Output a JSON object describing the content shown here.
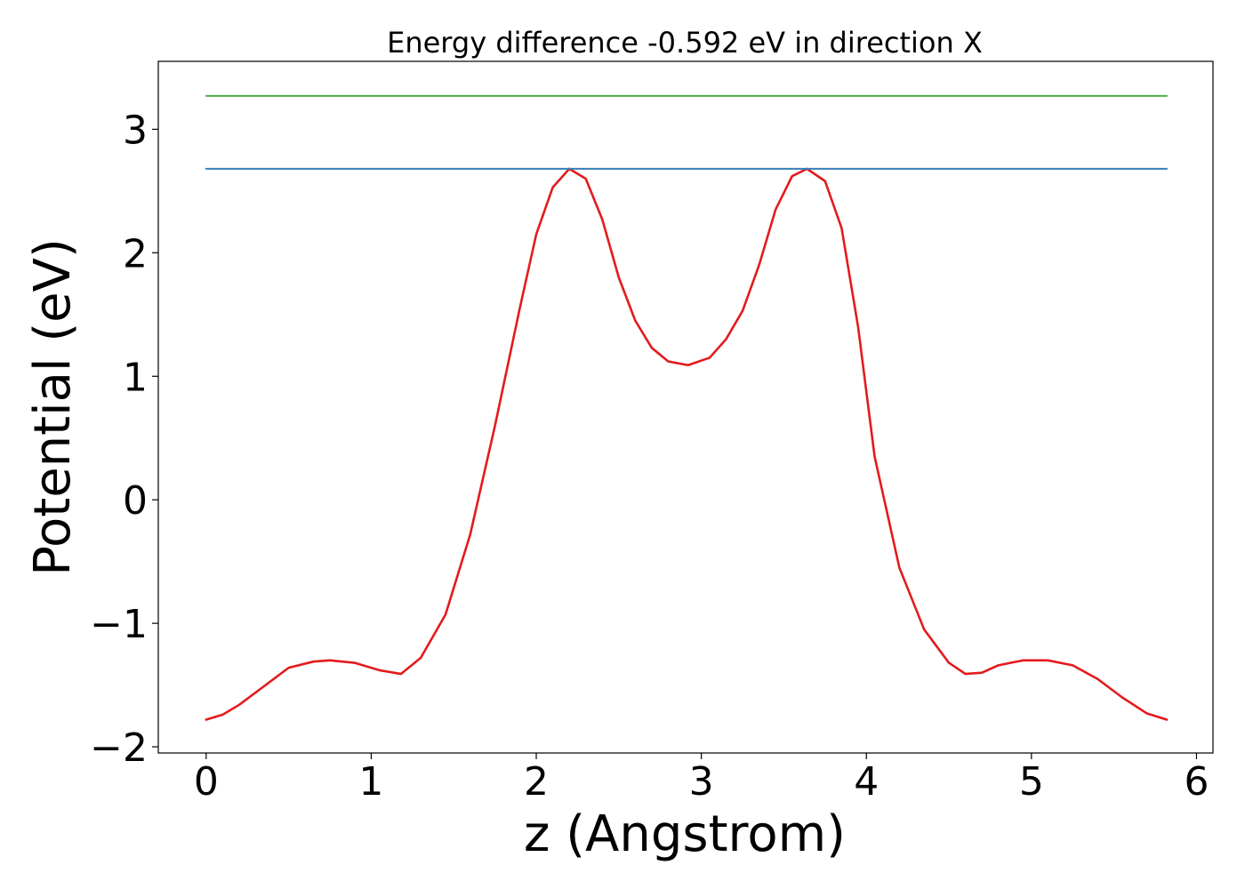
{
  "chart_data": {
    "type": "line",
    "title": "Energy difference -0.592 eV in direction X",
    "xlabel": "z (Angstrom)",
    "ylabel": "Potential (eV)",
    "xlim": [
      -0.29,
      6.1
    ],
    "ylim": [
      -2.05,
      3.55
    ],
    "xticks": [
      0,
      1,
      2,
      3,
      4,
      5,
      6
    ],
    "xtick_labels": [
      "0",
      "1",
      "2",
      "3",
      "4",
      "5",
      "6"
    ],
    "yticks": [
      -2,
      -1,
      0,
      1,
      2,
      3
    ],
    "ytick_labels": [
      "−2",
      "−1",
      "0",
      "1",
      "2",
      "3"
    ],
    "grid": false,
    "series": [
      {
        "color": "#e41a1c",
        "style": "line",
        "x": [
          0.0,
          0.1,
          0.2,
          0.35,
          0.5,
          0.65,
          0.75,
          0.9,
          1.05,
          1.18,
          1.3,
          1.45,
          1.6,
          1.75,
          1.9,
          2.0,
          2.1,
          2.2,
          2.3,
          2.4,
          2.5,
          2.6,
          2.7,
          2.8,
          2.92,
          3.05,
          3.15,
          3.25,
          3.35,
          3.45,
          3.55,
          3.64,
          3.75,
          3.85,
          3.95,
          4.05,
          4.2,
          4.35,
          4.5,
          4.6,
          4.7,
          4.8,
          4.95,
          5.1,
          5.25,
          5.4,
          5.55,
          5.7,
          5.82
        ],
        "y": [
          -1.78,
          -1.74,
          -1.66,
          -1.51,
          -1.36,
          -1.31,
          -1.3,
          -1.32,
          -1.38,
          -1.41,
          -1.28,
          -0.93,
          -0.28,
          0.6,
          1.55,
          2.15,
          2.53,
          2.68,
          2.6,
          2.27,
          1.8,
          1.45,
          1.23,
          1.12,
          1.09,
          1.15,
          1.3,
          1.53,
          1.9,
          2.35,
          2.62,
          2.68,
          2.58,
          2.2,
          1.4,
          0.35,
          -0.55,
          -1.05,
          -1.32,
          -1.41,
          -1.4,
          -1.34,
          -1.3,
          -1.3,
          -1.34,
          -1.45,
          -1.6,
          -1.73,
          -1.78
        ]
      },
      {
        "color": "#377eb8",
        "style": "line",
        "x": [
          0.0,
          5.82
        ],
        "y": [
          2.68,
          2.68
        ]
      },
      {
        "color": "#4daf4a",
        "style": "line",
        "x": [
          0.0,
          5.82
        ],
        "y": [
          3.27,
          3.27
        ]
      }
    ]
  }
}
